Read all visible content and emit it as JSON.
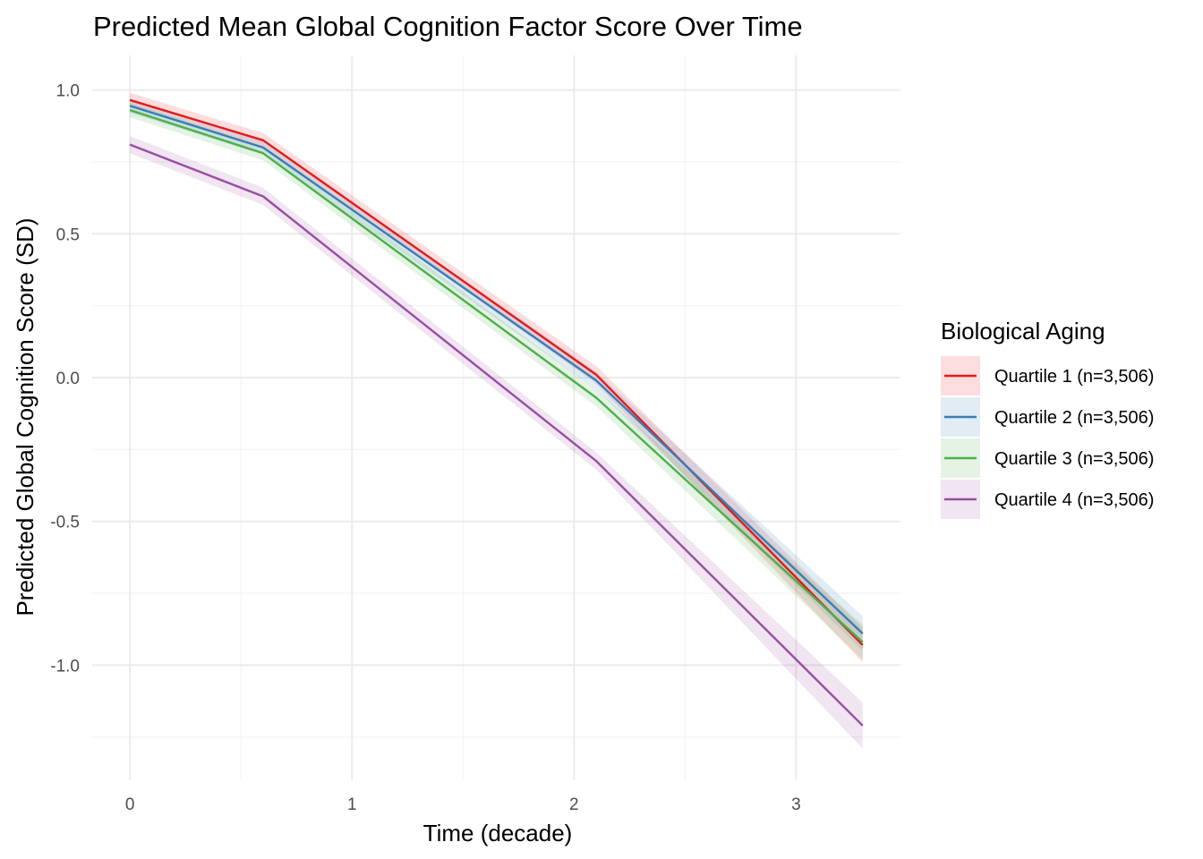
{
  "chart_data": {
    "type": "line",
    "title": "Predicted Mean Global Cognition Factor Score Over Time",
    "xlabel": "Time (decade)",
    "ylabel": "Predicted Global Cognition Score (SD)",
    "xlim": [
      -0.17,
      3.47
    ],
    "ylim": [
      -1.4,
      1.12
    ],
    "x_ticks": [
      0,
      1,
      2,
      3
    ],
    "x_tick_labels": [
      "0",
      "1",
      "2",
      "3"
    ],
    "y_ticks": [
      1.0,
      0.5,
      0.0,
      -0.5,
      -1.0
    ],
    "y_tick_labels": [
      "1.0",
      "0.5",
      "0.0",
      "-0.5",
      "-1.0"
    ],
    "grid": true,
    "legend": {
      "title": "Biological Aging",
      "position": "right"
    },
    "series": [
      {
        "name": "Quartile 1 (n=3,506)",
        "color": "#e41a1c",
        "x": [
          0,
          0.6,
          2.1,
          3.3
        ],
        "y": [
          0.965,
          0.825,
          0.01,
          -0.93
        ],
        "lower": [
          0.94,
          0.8,
          -0.02,
          -0.99
        ],
        "upper": [
          0.99,
          0.85,
          0.04,
          -0.87
        ]
      },
      {
        "name": "Quartile 2 (n=3,506)",
        "color": "#377eb8",
        "x": [
          0,
          0.6,
          2.1,
          3.3
        ],
        "y": [
          0.945,
          0.8,
          -0.01,
          -0.89
        ],
        "lower": [
          0.92,
          0.775,
          -0.04,
          -0.95
        ],
        "upper": [
          0.97,
          0.825,
          0.02,
          -0.83
        ]
      },
      {
        "name": "Quartile 3 (n=3,506)",
        "color": "#4daf4a",
        "x": [
          0,
          0.6,
          2.1,
          3.3
        ],
        "y": [
          0.93,
          0.78,
          -0.07,
          -0.92
        ],
        "lower": [
          0.905,
          0.755,
          -0.1,
          -0.98
        ],
        "upper": [
          0.955,
          0.805,
          -0.04,
          -0.86
        ]
      },
      {
        "name": "Quartile 4 (n=3,506)",
        "color": "#984ea3",
        "x": [
          0,
          0.6,
          2.1,
          3.3
        ],
        "y": [
          0.81,
          0.63,
          -0.29,
          -1.21
        ],
        "lower": [
          0.78,
          0.6,
          -0.32,
          -1.29
        ],
        "upper": [
          0.84,
          0.66,
          -0.26,
          -1.13
        ]
      }
    ]
  }
}
